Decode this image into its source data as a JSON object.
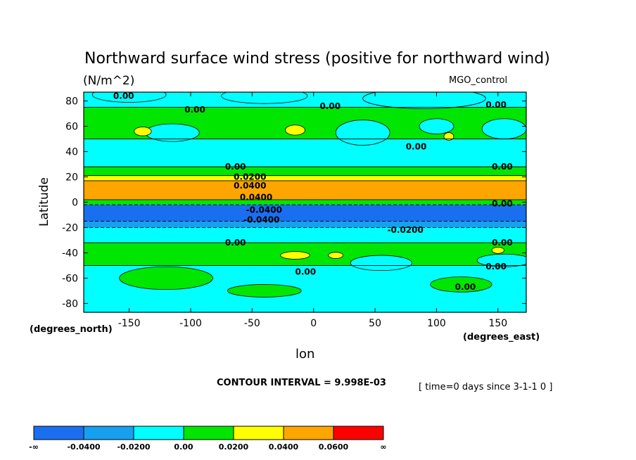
{
  "chart_data": {
    "type": "heatmap",
    "title": "Northward surface wind stress (positive for northward wind)",
    "units_label": "(N/m^2)",
    "dataset_label": "MGO_control",
    "xlabel": "lon",
    "ylabel": "Latitude",
    "x_units": "(degrees_east)",
    "y_units": "(degrees_north)",
    "xlim": [
      -180,
      180
    ],
    "ylim": [
      -90,
      90
    ],
    "x_ticks": [
      -150,
      -100,
      -50,
      0,
      50,
      100,
      150
    ],
    "x_tick_labels": [
      "-150",
      "-100",
      "-50",
      "0",
      "50",
      "100",
      "150"
    ],
    "y_ticks": [
      80,
      60,
      40,
      20,
      0,
      -20,
      -40,
      -60,
      -80
    ],
    "y_tick_labels": [
      "80",
      "60",
      "40",
      "20",
      "0",
      "-20",
      "-40",
      "-60",
      "-80"
    ],
    "contour_interval_label": "CONTOUR INTERVAL = 9.998E-03",
    "time_label": "[ time=0 days since 3-1-1 0 ]",
    "colorbar": {
      "labels": [
        "-∞",
        "-0.0400",
        "-0.0200",
        "0.00",
        "0.0200",
        "0.0400",
        "0.0600",
        "∞"
      ],
      "colors": [
        "#1a6ff0",
        "#16a0f0",
        "#00ffff",
        "#00e600",
        "#ffff00",
        "#ffa500",
        "#ff0000"
      ]
    },
    "lat_bands": [
      {
        "lat": [
          75,
          90
        ],
        "level": 2
      },
      {
        "lat": [
          50,
          75
        ],
        "level": 3
      },
      {
        "lat": [
          28,
          50
        ],
        "level": 2
      },
      {
        "lat": [
          21,
          28
        ],
        "level": 3
      },
      {
        "lat": [
          17,
          21
        ],
        "level": 4
      },
      {
        "lat": [
          2,
          17
        ],
        "level": 5
      },
      {
        "lat": [
          -2,
          2
        ],
        "level": 3
      },
      {
        "lat": [
          -15,
          -2
        ],
        "level": 0
      },
      {
        "lat": [
          -20,
          -15
        ],
        "level": 1
      },
      {
        "lat": [
          -32,
          -20
        ],
        "level": 2
      },
      {
        "lat": [
          -50,
          -32
        ],
        "level": 3
      },
      {
        "lat": [
          -90,
          -50
        ],
        "level": 2
      }
    ],
    "patches": [
      {
        "lon": -150,
        "lat": 85,
        "rlon": 30,
        "rlat": 6,
        "level": 2
      },
      {
        "lon": -40,
        "lat": 84,
        "rlon": 35,
        "rlat": 6,
        "level": 2
      },
      {
        "lon": 90,
        "lat": 82,
        "rlon": 50,
        "rlat": 8,
        "level": 2
      },
      {
        "lon": -115,
        "lat": 55,
        "rlon": 22,
        "rlat": 7,
        "level": 2
      },
      {
        "lon": 40,
        "lat": 55,
        "rlon": 22,
        "rlat": 10,
        "level": 2
      },
      {
        "lon": 100,
        "lat": 60,
        "rlon": 14,
        "rlat": 6,
        "level": 2
      },
      {
        "lon": 155,
        "lat": 58,
        "rlon": 18,
        "rlat": 8,
        "level": 2
      },
      {
        "lon": -139,
        "lat": 56,
        "rlon": 7,
        "rlat": 3.5,
        "level": 4
      },
      {
        "lon": -15,
        "lat": 57,
        "rlon": 8,
        "rlat": 4,
        "level": 4
      },
      {
        "lon": 110,
        "lat": 52,
        "rlon": 4,
        "rlat": 3,
        "level": 4
      },
      {
        "lon": -120,
        "lat": -60,
        "rlon": 38,
        "rlat": 9,
        "level": 3
      },
      {
        "lon": -40,
        "lat": -70,
        "rlon": 30,
        "rlat": 5,
        "level": 3
      },
      {
        "lon": 120,
        "lat": -65,
        "rlon": 25,
        "rlat": 6,
        "level": 3
      },
      {
        "lon": 55,
        "lat": -48,
        "rlon": 25,
        "rlat": 6,
        "level": 2
      },
      {
        "lon": 155,
        "lat": -46,
        "rlon": 22,
        "rlat": 5,
        "level": 2
      },
      {
        "lon": -15,
        "lat": -42,
        "rlon": 12,
        "rlat": 3,
        "level": 4
      },
      {
        "lon": 18,
        "lat": -42,
        "rlon": 6,
        "rlat": 2.5,
        "level": 4
      },
      {
        "lon": 150,
        "lat": -38,
        "rlon": 5,
        "rlat": 2.5,
        "level": 4
      }
    ],
    "annotations": [
      {
        "text": "0.00",
        "lon": -163,
        "lat": 84
      },
      {
        "text": "0.00",
        "lon": -105,
        "lat": 73
      },
      {
        "text": "0.00",
        "lon": 5,
        "lat": 76
      },
      {
        "text": "0.00",
        "lon": 140,
        "lat": 77
      },
      {
        "text": "0.00",
        "lon": 75,
        "lat": 44
      },
      {
        "text": "0.00",
        "lon": -72,
        "lat": 28
      },
      {
        "text": "0.00",
        "lon": 145,
        "lat": 28
      },
      {
        "text": "0.0200",
        "lon": -65,
        "lat": 20
      },
      {
        "text": "0.0400",
        "lon": -65,
        "lat": 13
      },
      {
        "text": "0.0400",
        "lon": -60,
        "lat": 4
      },
      {
        "text": "0.00",
        "lon": 145,
        "lat": -1
      },
      {
        "text": "-0.0400",
        "lon": -55,
        "lat": -6
      },
      {
        "text": "-0.0400",
        "lon": -57,
        "lat": -14
      },
      {
        "text": "-0.0200",
        "lon": 60,
        "lat": -22
      },
      {
        "text": "0.00",
        "lon": -72,
        "lat": -32
      },
      {
        "text": "0.00",
        "lon": 145,
        "lat": -32
      },
      {
        "text": "0.00",
        "lon": -15,
        "lat": -55
      },
      {
        "text": "0.00",
        "lon": 140,
        "lat": -51
      },
      {
        "text": "0.00",
        "lon": 115,
        "lat": -67
      }
    ]
  }
}
